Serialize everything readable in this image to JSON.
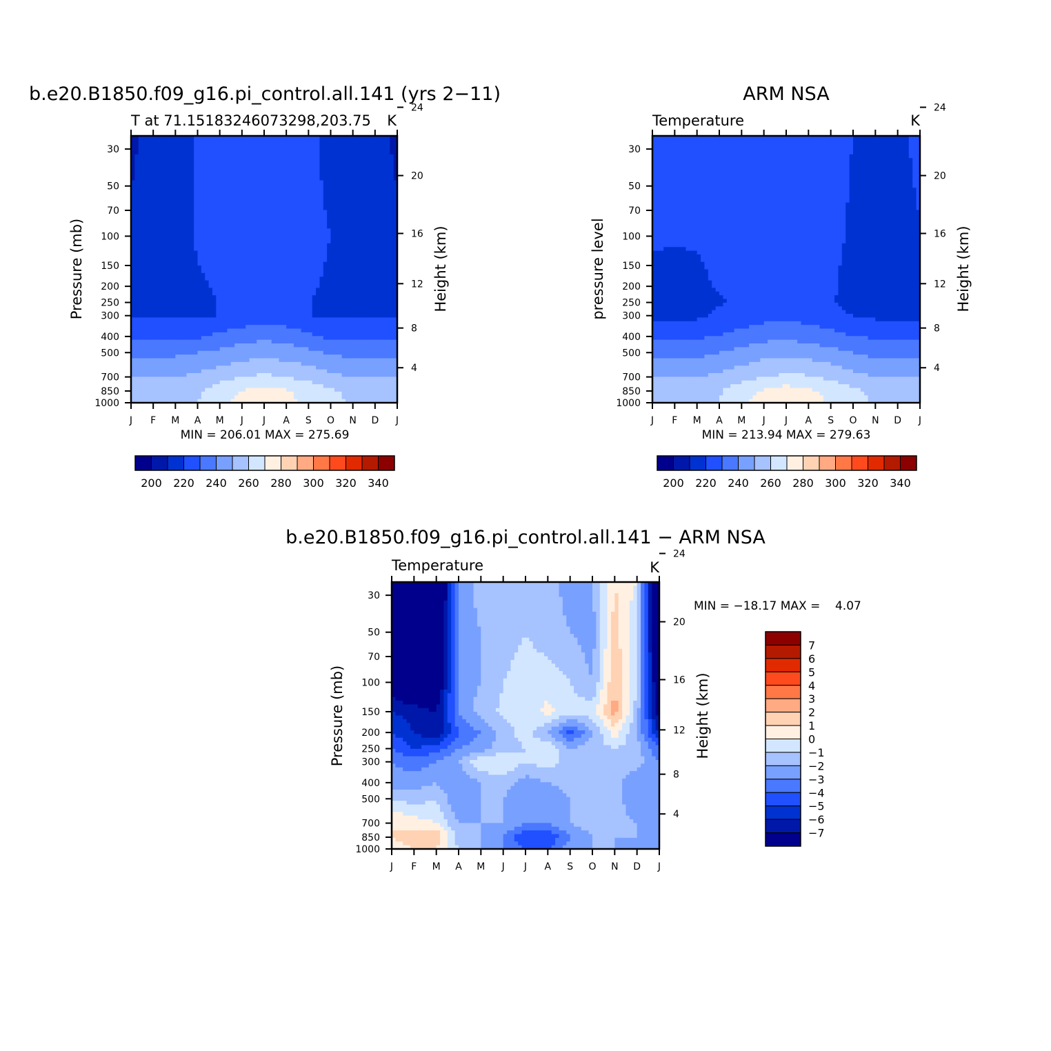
{
  "months": [
    "J",
    "F",
    "M",
    "A",
    "M",
    "J",
    "J",
    "A",
    "S",
    "O",
    "N",
    "D",
    "J"
  ],
  "pressure_ticks": [
    {
      "p": 30,
      "label": "30"
    },
    {
      "p": 50,
      "label": "50"
    },
    {
      "p": 70,
      "label": "70"
    },
    {
      "p": 100,
      "label": "100"
    },
    {
      "p": 150,
      "label": "150"
    },
    {
      "p": 200,
      "label": "200"
    },
    {
      "p": 250,
      "label": "250"
    },
    {
      "p": 300,
      "label": "300"
    },
    {
      "p": 400,
      "label": "400"
    },
    {
      "p": 500,
      "label": "500"
    },
    {
      "p": 700,
      "label": "700"
    },
    {
      "p": 850,
      "label": "850"
    },
    {
      "p": 1000,
      "label": "1000"
    }
  ],
  "height_ticks": [
    {
      "km": 4,
      "label": "4"
    },
    {
      "km": 8,
      "label": "8"
    },
    {
      "km": 12,
      "label": "12"
    },
    {
      "km": 16,
      "label": "16"
    },
    {
      "km": 20,
      "label": "20"
    },
    {
      "km": 24,
      "label": "24"
    }
  ],
  "temp_palette": [
    "#00008c",
    "#0018aa",
    "#0032d2",
    "#2050ff",
    "#4a78ff",
    "#78a0ff",
    "#a6c2ff",
    "#d2e6ff",
    "#fff0e2",
    "#ffd2b4",
    "#ffaa82",
    "#ff7846",
    "#ff4a1e",
    "#e22a00",
    "#b41a00",
    "#8c0000"
  ],
  "diff_palette": [
    "#00008c",
    "#0018aa",
    "#0032d2",
    "#2050ff",
    "#4a78ff",
    "#78a0ff",
    "#a6c2ff",
    "#d2e6ff",
    "#fff0e2",
    "#ffd2b4",
    "#ffaa82",
    "#ff7846",
    "#ff4a1e",
    "#e22a00",
    "#b41a00",
    "#8c0000"
  ],
  "temp_colorbar_labels": [
    "200",
    "220",
    "240",
    "260",
    "280",
    "300",
    "320",
    "340"
  ],
  "diff_colorbar_labels": [
    "7",
    "6",
    "5",
    "4",
    "3",
    "2",
    "1",
    "0",
    "−1",
    "−2",
    "−3",
    "−4",
    "−5",
    "−6",
    "−7"
  ],
  "chart_data": [
    {
      "type": "heatmap",
      "id": "model",
      "title": "b.e20.B1850.f09_g16.pi_control.all.141 (yrs 2−11)",
      "subtitle_left": "T at 71.15183246073298,203.75",
      "subtitle_right": "K",
      "xlabel": "",
      "ylabel": "Pressure (mb)",
      "ylabel_right": "Height (km)",
      "y_scale": "log",
      "ylim": [
        1000,
        25
      ],
      "stats": "MIN = 206.01 MAX = 275.69",
      "levels": [
        200,
        210,
        220,
        230,
        240,
        250,
        260,
        270,
        280,
        290,
        300,
        310,
        320,
        330,
        340
      ],
      "pressures": [
        25,
        100,
        200,
        250,
        300,
        400,
        500,
        700,
        850,
        1000
      ],
      "values": [
        [
          208,
          214,
          214,
          222,
          224,
          224,
          224,
          224,
          224,
          215,
          214,
          214,
          208
        ],
        [
          212,
          212,
          212,
          222,
          224,
          224,
          224,
          224,
          224,
          220,
          212,
          212,
          212
        ],
        [
          210,
          210,
          210,
          218,
          222,
          224,
          224,
          224,
          222,
          218,
          210,
          210,
          210
        ],
        [
          212,
          212,
          212,
          212,
          222,
          225,
          225,
          224,
          222,
          212,
          212,
          212,
          212
        ],
        [
          220,
          220,
          220,
          220,
          220,
          222,
          225,
          223,
          220,
          220,
          220,
          220,
          220
        ],
        [
          228,
          228,
          228,
          228,
          233,
          236,
          238,
          236,
          232,
          228,
          228,
          228,
          228
        ],
        [
          237,
          237,
          238,
          240,
          242,
          245,
          246,
          245,
          242,
          239,
          237,
          237,
          237
        ],
        [
          250,
          250,
          250,
          252,
          256,
          260,
          262,
          260,
          257,
          252,
          250,
          250,
          250
        ],
        [
          256,
          256,
          256,
          258,
          266,
          270,
          274,
          271,
          266,
          262,
          256,
          256,
          256
        ],
        [
          258,
          258,
          258,
          260,
          268,
          272,
          275,
          273,
          268,
          265,
          258,
          258,
          258
        ]
      ]
    },
    {
      "type": "heatmap",
      "id": "obs",
      "title": "ARM NSA",
      "subtitle_left": "Temperature",
      "subtitle_right": "K",
      "xlabel": "",
      "ylabel": "pressure level",
      "ylabel_right": "Height (km)",
      "y_scale": "log",
      "ylim": [
        1000,
        25
      ],
      "stats": "MIN = 213.94 MAX = 279.63",
      "levels": [
        200,
        210,
        220,
        230,
        240,
        250,
        260,
        270,
        280,
        290,
        300,
        310,
        320,
        330,
        340
      ],
      "pressures": [
        25,
        100,
        200,
        250,
        300,
        400,
        500,
        700,
        850,
        1000
      ],
      "values": [
        [
          222,
          222,
          222,
          222,
          224,
          226,
          228,
          226,
          222,
          220,
          218,
          216,
          224
        ],
        [
          221,
          221,
          221,
          222,
          223,
          225,
          226,
          225,
          222,
          219,
          218,
          216,
          219
        ],
        [
          218,
          216,
          218,
          221,
          223,
          225,
          226,
          225,
          222,
          216,
          216,
          216,
          216
        ],
        [
          216,
          214,
          216,
          219,
          222,
          225,
          226,
          225,
          221,
          216,
          216,
          216,
          216
        ],
        [
          218,
          216,
          218,
          222,
          224,
          226,
          227,
          226,
          224,
          220,
          218,
          218,
          218
        ],
        [
          228,
          228,
          229,
          230,
          234,
          237,
          238,
          236,
          233,
          230,
          229,
          228,
          228
        ],
        [
          236,
          236,
          237,
          240,
          243,
          246,
          247,
          246,
          243,
          240,
          237,
          236,
          236
        ],
        [
          250,
          250,
          250,
          252,
          256,
          260,
          262,
          261,
          258,
          253,
          250,
          250,
          250
        ],
        [
          257,
          257,
          257,
          259,
          266,
          271,
          275,
          272,
          267,
          262,
          257,
          257,
          257
        ],
        [
          258,
          258,
          258,
          260,
          268,
          274,
          278,
          274,
          269,
          266,
          258,
          258,
          258
        ]
      ]
    },
    {
      "type": "heatmap",
      "id": "diff",
      "title": "b.e20.B1850.f09_g16.pi_control.all.141 − ARM NSA",
      "subtitle_left": "Temperature",
      "subtitle_right": "K",
      "xlabel": "",
      "ylabel": "Pressure (mb)",
      "ylabel_right": "Height (km)",
      "y_scale": "log",
      "ylim": [
        1000,
        25
      ],
      "stats": "MIN = −18.17 MAX =    4.07",
      "levels": [
        -7,
        -6,
        -5,
        -4,
        -3,
        -2,
        -1,
        0,
        1,
        2,
        3,
        4,
        5,
        6,
        7
      ],
      "pressures": [
        25,
        50,
        100,
        150,
        200,
        250,
        300,
        400,
        500,
        700,
        850,
        1000
      ],
      "values": [
        [
          -14,
          -12,
          -10,
          -3,
          -1.5,
          -1.5,
          -1,
          -1.5,
          -2.5,
          -2,
          1,
          0,
          -12
        ],
        [
          -12,
          -12,
          -10,
          -2.5,
          -2,
          -1.5,
          -1,
          -1.5,
          -2,
          -2.5,
          1.5,
          -1,
          -10
        ],
        [
          -8,
          -9,
          -9,
          -2.5,
          -2,
          -1,
          -0.5,
          -0.5,
          -1,
          -2,
          2,
          -1,
          -9
        ],
        [
          -6,
          -6.5,
          -7,
          -3,
          -1.5,
          -0.8,
          -0.5,
          0.3,
          -0.5,
          -0.5,
          2.5,
          -1.5,
          -8
        ],
        [
          -5,
          -6,
          -7,
          -4,
          -3,
          -1.5,
          -0.5,
          -2,
          -4.5,
          -2,
          0.5,
          -2,
          -6
        ],
        [
          -4,
          -5,
          -4.5,
          -3,
          -2.5,
          -1.5,
          -1,
          0,
          -2,
          -1.5,
          -1,
          -1.5,
          -4
        ],
        [
          -3,
          -3.5,
          -3,
          -2,
          0,
          0,
          -1,
          -0.5,
          -1.5,
          -1.5,
          -1.5,
          -1.5,
          -3
        ],
        [
          -2.5,
          -2.5,
          -2,
          -3,
          -2,
          -1.5,
          -2.5,
          -2,
          -1.5,
          -1.5,
          -1.5,
          -3,
          -2
        ],
        [
          -1,
          -1.5,
          -1,
          -3,
          -2,
          -2,
          -3,
          -3,
          -2,
          -1.5,
          -1.5,
          -3,
          -2
        ],
        [
          1,
          0.5,
          0,
          -2,
          -2,
          -2,
          -3,
          -3,
          -2,
          -1.5,
          -1.5,
          -2,
          -2
        ],
        [
          1,
          1.5,
          2,
          -1.5,
          -2,
          -3,
          -5,
          -5,
          -3,
          -2,
          -2,
          -2,
          -2.5
        ],
        [
          0.5,
          1,
          1,
          -1,
          -2,
          -3,
          -4,
          -4,
          -2.5,
          -2,
          -2,
          -2.5,
          -3
        ]
      ]
    }
  ]
}
